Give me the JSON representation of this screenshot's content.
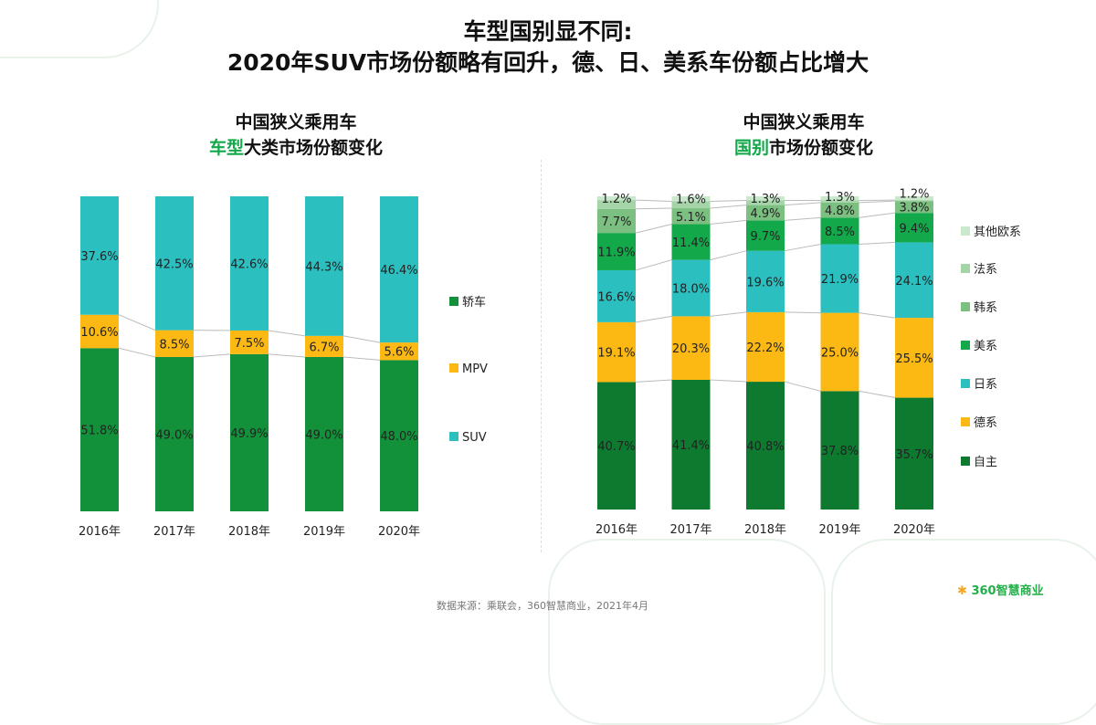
{
  "title": {
    "line1": "车型国别显不同:",
    "line2": "2020年SUV市场份额略有回升，德、日、美系车份额占比增大"
  },
  "left": {
    "sub1": "中国狭义乘用车",
    "sub2_hl": "车型",
    "sub2_rest": "大类市场份额变化"
  },
  "right": {
    "sub1": "中国狭义乘用车",
    "sub2_hl": "国别",
    "sub2_rest": "市场份额变化"
  },
  "footer": {
    "source": "数据来源：乘联会，360智慧商业，2021年4月",
    "logo": "360智慧商业"
  },
  "chart_data": [
    {
      "type": "bar",
      "stacked": true,
      "categories": [
        "2016年",
        "2017年",
        "2018年",
        "2019年",
        "2020年"
      ],
      "ylim": [
        0,
        100
      ],
      "legend": "right",
      "series": [
        {
          "name": "轿车",
          "color": "#13913a",
          "values": [
            51.8,
            49.0,
            49.9,
            49.0,
            48.0
          ],
          "labels": [
            "51.8%",
            "49.0%",
            "49.9%",
            "49.0%",
            "48.0%"
          ]
        },
        {
          "name": "MPV",
          "color": "#fdb913",
          "values": [
            10.6,
            8.5,
            7.5,
            6.7,
            5.6
          ],
          "labels": [
            "10.6%",
            "8.5%",
            "7.5%",
            "6.7%",
            "5.6%"
          ]
        },
        {
          "name": "SUV",
          "color": "#2bbfc0",
          "values": [
            37.6,
            42.5,
            42.6,
            44.3,
            46.4
          ],
          "labels": [
            "37.6%",
            "42.5%",
            "42.6%",
            "44.3%",
            "46.4%"
          ]
        }
      ]
    },
    {
      "type": "bar",
      "stacked": true,
      "categories": [
        "2016年",
        "2017年",
        "2018年",
        "2019年",
        "2020年"
      ],
      "ylim": [
        0,
        100
      ],
      "legend": "right",
      "series": [
        {
          "name": "自主",
          "color": "#0d7a30",
          "values": [
            40.7,
            41.4,
            40.8,
            37.8,
            35.7
          ],
          "labels": [
            "40.7%",
            "41.4%",
            "40.8%",
            "37.8%",
            "35.7%"
          ]
        },
        {
          "name": "德系",
          "color": "#fdb913",
          "values": [
            19.1,
            20.3,
            22.2,
            25.0,
            25.5
          ],
          "labels": [
            "19.1%",
            "20.3%",
            "22.2%",
            "25.0%",
            "25.5%"
          ]
        },
        {
          "name": "日系",
          "color": "#2bbfc0",
          "values": [
            16.6,
            18.0,
            19.6,
            21.9,
            24.1
          ],
          "labels": [
            "16.6%",
            "18.0%",
            "19.6%",
            "21.9%",
            "24.1%"
          ]
        },
        {
          "name": "美系",
          "color": "#13a84a",
          "values": [
            11.9,
            11.4,
            9.7,
            8.5,
            9.4
          ],
          "labels": [
            "11.9%",
            "11.4%",
            "9.7%",
            "8.5%",
            "9.4%"
          ]
        },
        {
          "name": "韩系",
          "color": "#7cc081",
          "values": [
            7.7,
            5.1,
            4.9,
            4.8,
            3.8
          ],
          "labels": [
            "7.7%",
            "5.1%",
            "4.9%",
            "4.8%",
            "3.8%"
          ]
        },
        {
          "name": "法系",
          "color": "#a5d4a8",
          "values": [
            2.8,
            2.2,
            1.5,
            0.7,
            0.3
          ],
          "labels": [
            "",
            "",
            "",
            "",
            ""
          ]
        },
        {
          "name": "其他欧系",
          "color": "#c9e8cc",
          "values": [
            1.2,
            1.6,
            1.3,
            1.3,
            1.2
          ],
          "labels": [
            "1.2%",
            "1.6%",
            "1.3%",
            "1.3%",
            "1.2%"
          ]
        }
      ]
    }
  ]
}
